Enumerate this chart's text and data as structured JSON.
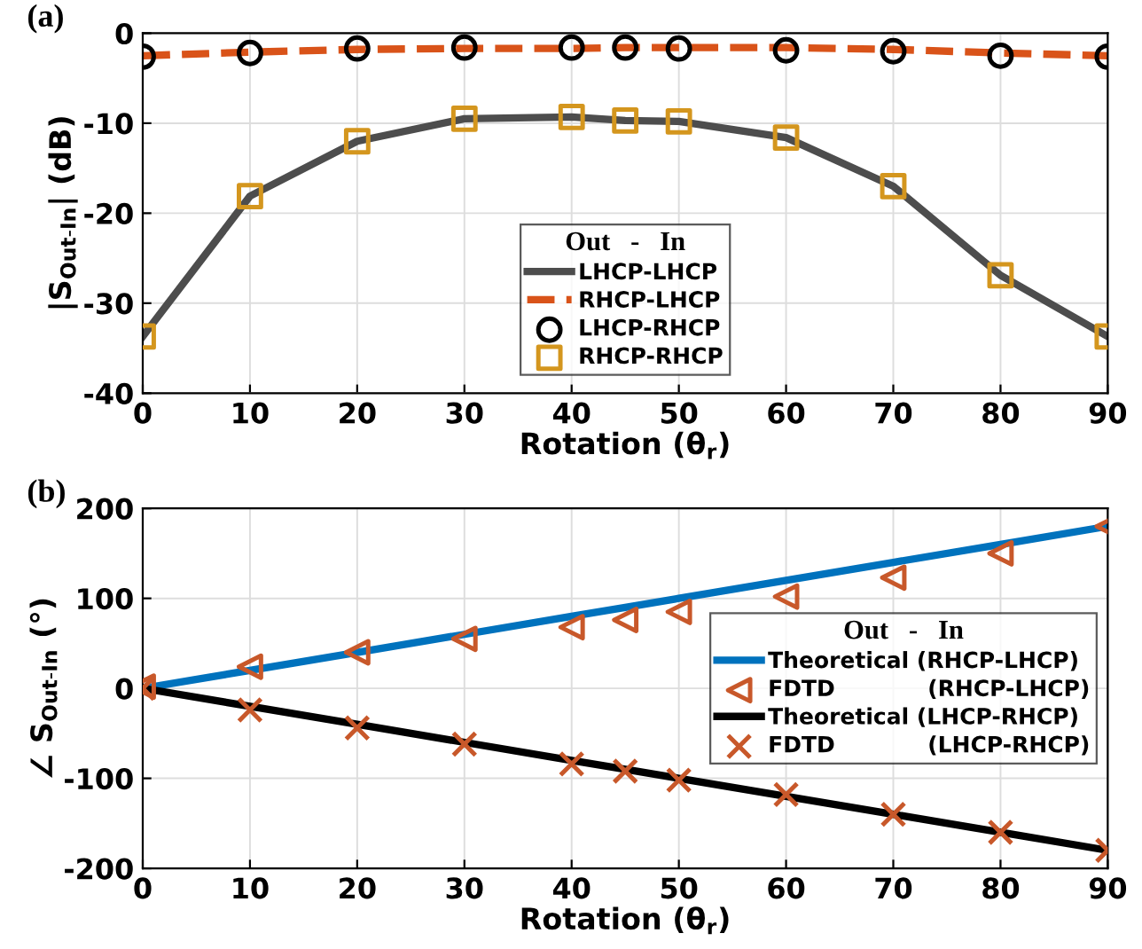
{
  "chart_data": [
    {
      "type": "line",
      "title": "(a)",
      "xlabel": "Rotation (θ$_{r}$)",
      "ylabel": "|S$_{Out-In}$| (dB)",
      "legend_title": "Out   -   In",
      "legend": "bottom",
      "grid": true,
      "x": [
        0,
        10,
        20,
        30,
        40,
        45,
        50,
        60,
        70,
        80,
        90
      ],
      "xlim": [
        0,
        90
      ],
      "xticks": [
        0,
        10,
        20,
        30,
        40,
        50,
        60,
        70,
        80,
        90
      ],
      "ylim": [
        -40,
        0
      ],
      "yticks": [
        -40,
        -30,
        -20,
        -10,
        0
      ],
      "series": [
        {
          "name": "LHCP-LHCP",
          "type": "line",
          "color": "#4d4d4d",
          "line_style": "solid",
          "marker": "none",
          "values": [
            -33.7,
            -18.1,
            -12.0,
            -9.5,
            -9.3,
            -9.7,
            -9.8,
            -11.6,
            -17.0,
            -26.9,
            -33.7
          ]
        },
        {
          "name": "RHCP-LHCP",
          "type": "line",
          "color": "#d95319",
          "line_style": "dashed",
          "marker": "none",
          "values": [
            -2.5,
            -2.1,
            -1.8,
            -1.7,
            -1.7,
            -1.6,
            -1.6,
            -1.6,
            -1.8,
            -2.2,
            -2.5
          ]
        },
        {
          "name": "LHCP-RHCP",
          "type": "scatter",
          "color": "#000000",
          "marker": "circle",
          "values": [
            -2.6,
            -2.2,
            -1.7,
            -1.6,
            -1.6,
            -1.6,
            -1.7,
            -1.9,
            -2.0,
            -2.5,
            -2.6
          ]
        },
        {
          "name": "RHCP-RHCP",
          "type": "scatter",
          "color": "#d4961e",
          "marker": "square",
          "values": [
            -33.7,
            -18.1,
            -12.0,
            -9.5,
            -9.3,
            -9.7,
            -9.8,
            -11.6,
            -17.0,
            -26.9,
            -33.7
          ]
        }
      ]
    },
    {
      "type": "line",
      "title": "(b)",
      "xlabel": "Rotation (θ$_{r}$)",
      "ylabel": "∠ S$_{Out-In}$ (°)",
      "legend_title": "Out   -   In",
      "legend": "right",
      "grid": true,
      "x": [
        0,
        10,
        20,
        30,
        40,
        45,
        50,
        60,
        70,
        80,
        90
      ],
      "xlim": [
        0,
        90
      ],
      "xticks": [
        0,
        10,
        20,
        30,
        40,
        50,
        60,
        70,
        80,
        90
      ],
      "ylim": [
        -200,
        200
      ],
      "yticks": [
        -200,
        -100,
        0,
        100,
        200
      ],
      "series": [
        {
          "name": "Theoretical (RHCP-LHCP)",
          "type": "line",
          "color": "#0072bd",
          "line_style": "solid",
          "marker": "none",
          "values": [
            0,
            20,
            40,
            60,
            80,
            90,
            100,
            120,
            140,
            160,
            180
          ]
        },
        {
          "name": "FDTD            (RHCP-LHCP)",
          "type": "scatter",
          "color": "#c8582a",
          "marker": "triangle",
          "values": [
            2,
            24,
            40,
            55,
            68,
            76,
            85,
            102,
            123,
            150,
            180
          ]
        },
        {
          "name": "Theoretical (LHCP-RHCP)",
          "type": "line",
          "color": "#000000",
          "line_style": "solid",
          "marker": "none",
          "values": [
            0,
            -20,
            -40,
            -60,
            -80,
            -90,
            -100,
            -120,
            -140,
            -160,
            -180
          ]
        },
        {
          "name": "FDTD            (LHCP-RHCP)",
          "type": "scatter",
          "color": "#c8582a",
          "marker": "cross",
          "values": [
            0,
            -24,
            -44,
            -62,
            -84,
            -92,
            -102,
            -118,
            -140,
            -160,
            -180
          ]
        }
      ]
    }
  ]
}
